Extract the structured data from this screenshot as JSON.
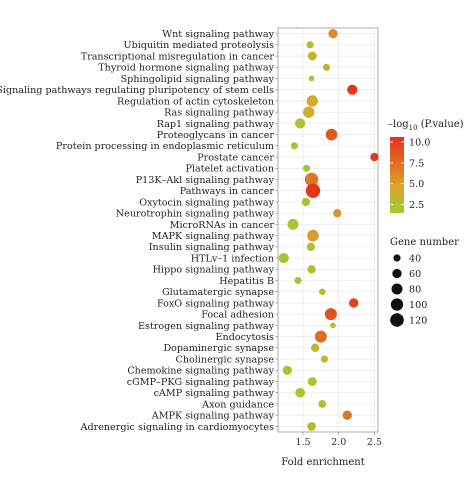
{
  "chart_data": {
    "type": "scatter",
    "xlabel": "Fold enrichment",
    "xlim": [
      1.15,
      2.55
    ],
    "x_ticks": [
      1.5,
      2.0,
      2.5
    ],
    "x_tick_labels": [
      "1.5",
      "2.0",
      "2.5"
    ],
    "grid": true,
    "legend_placement": "right",
    "points": [
      {
        "term": "Wnt signaling pathway",
        "fold": 1.92,
        "count": 60,
        "neglog10p": 6.0
      },
      {
        "term": "Ubiquitin mediated proteolysis",
        "fold": 1.6,
        "count": 40,
        "neglog10p": 3.0
      },
      {
        "term": "Transcriptional misregulation in cancer",
        "fold": 1.63,
        "count": 55,
        "neglog10p": 3.5
      },
      {
        "term": "Thyroid hormone signaling pathway",
        "fold": 1.83,
        "count": 40,
        "neglog10p": 3.5
      },
      {
        "term": "Sphingolipid signaling pathway",
        "fold": 1.62,
        "count": 30,
        "neglog10p": 2.5
      },
      {
        "term": "Signaling pathways regulating pluripotency of stem cells",
        "fold": 2.19,
        "count": 70,
        "neglog10p": 10.5
      },
      {
        "term": "Regulation of actin cytoskeleton",
        "fold": 1.63,
        "count": 85,
        "neglog10p": 4.5
      },
      {
        "term": "Ras signaling pathway",
        "fold": 1.58,
        "count": 85,
        "neglog10p": 4.0
      },
      {
        "term": "Rap1 signaling pathway",
        "fold": 1.46,
        "count": 70,
        "neglog10p": 2.5
      },
      {
        "term": "Proteoglycans in cancer",
        "fold": 1.9,
        "count": 90,
        "neglog10p": 8.5
      },
      {
        "term": "Protein processing in endoplasmic reticulum",
        "fold": 1.38,
        "count": 40,
        "neglog10p": 2.0
      },
      {
        "term": "Prostate cancer",
        "fold": 2.5,
        "count": 50,
        "neglog10p": 10.5
      },
      {
        "term": "Platelet activation",
        "fold": 1.55,
        "count": 40,
        "neglog10p": 2.0
      },
      {
        "term": "P13K–Akl signaling pathway",
        "fold": 1.62,
        "count": 120,
        "neglog10p": 7.0
      },
      {
        "term": "Pathways in cancer",
        "fold": 1.64,
        "count": 135,
        "neglog10p": 10.5
      },
      {
        "term": "Oxytocin signaling pathway",
        "fold": 1.54,
        "count": 50,
        "neglog10p": 2.2
      },
      {
        "term": "Neurotrophin signaling pathway",
        "fold": 1.98,
        "count": 50,
        "neglog10p": 5.5
      },
      {
        "term": "MicroRNAs in cancer",
        "fold": 1.36,
        "count": 80,
        "neglog10p": 2.5
      },
      {
        "term": "MAPK signaling pathway",
        "fold": 1.64,
        "count": 90,
        "neglog10p": 5.0
      },
      {
        "term": "Insulin signaling pathway",
        "fold": 1.61,
        "count": 50,
        "neglog10p": 2.5
      },
      {
        "term": "HTLv–1 infection",
        "fold": 1.23,
        "count": 70,
        "neglog10p": 2.0
      },
      {
        "term": "Hippo signaling pathway",
        "fold": 1.62,
        "count": 50,
        "neglog10p": 3.0
      },
      {
        "term": "Hepatitis B",
        "fold": 1.43,
        "count": 40,
        "neglog10p": 1.8
      },
      {
        "term": "Glutamatergic synapse",
        "fold": 1.77,
        "count": 35,
        "neglog10p": 3.0
      },
      {
        "term": "FoxO signaling pathway",
        "fold": 2.21,
        "count": 60,
        "neglog10p": 10.0
      },
      {
        "term": "Focal adhesion",
        "fold": 1.89,
        "count": 95,
        "neglog10p": 9.0
      },
      {
        "term": "Estrogen signaling pathway",
        "fold": 1.92,
        "count": 30,
        "neglog10p": 3.0
      },
      {
        "term": "Endocytosis",
        "fold": 1.75,
        "count": 95,
        "neglog10p": 7.5
      },
      {
        "term": "Dopaminergic synapse",
        "fold": 1.67,
        "count": 50,
        "neglog10p": 3.5
      },
      {
        "term": "Cholinergic synapse",
        "fold": 1.8,
        "count": 40,
        "neglog10p": 3.5
      },
      {
        "term": "Chemokine signaling pathway",
        "fold": 1.28,
        "count": 60,
        "neglog10p": 2.0
      },
      {
        "term": "cGMP–PKG signaling pathway",
        "fold": 1.63,
        "count": 55,
        "neglog10p": 2.5
      },
      {
        "term": "cAMP signaling pathway",
        "fold": 1.46,
        "count": 65,
        "neglog10p": 2.3
      },
      {
        "term": "Axon guidance",
        "fold": 1.77,
        "count": 45,
        "neglog10p": 3.0
      },
      {
        "term": "AMPK signaling pathway",
        "fold": 2.12,
        "count": 60,
        "neglog10p": 7.0
      },
      {
        "term": "Adrenergic signaling in cardiomyocytes",
        "fold": 1.62,
        "count": 55,
        "neglog10p": 3.0
      }
    ],
    "color_legend": {
      "title_prefix": "–log",
      "title_sub": "10",
      "title_suffix": " (P.value)",
      "range": [
        1.5,
        10.6
      ],
      "ticks": [
        2.5,
        5.0,
        7.5,
        10.0
      ],
      "tick_labels": [
        "2.5",
        "5.0",
        "7.5",
        "10.0"
      ],
      "colors": [
        "#9acd32",
        "#d9a72e",
        "#e06d22",
        "#e2341d"
      ]
    },
    "size_legend": {
      "title": "Gene number",
      "values": [
        40,
        60,
        80,
        100,
        120
      ],
      "labels": [
        "40",
        "60",
        "80",
        "100",
        "120"
      ]
    }
  }
}
